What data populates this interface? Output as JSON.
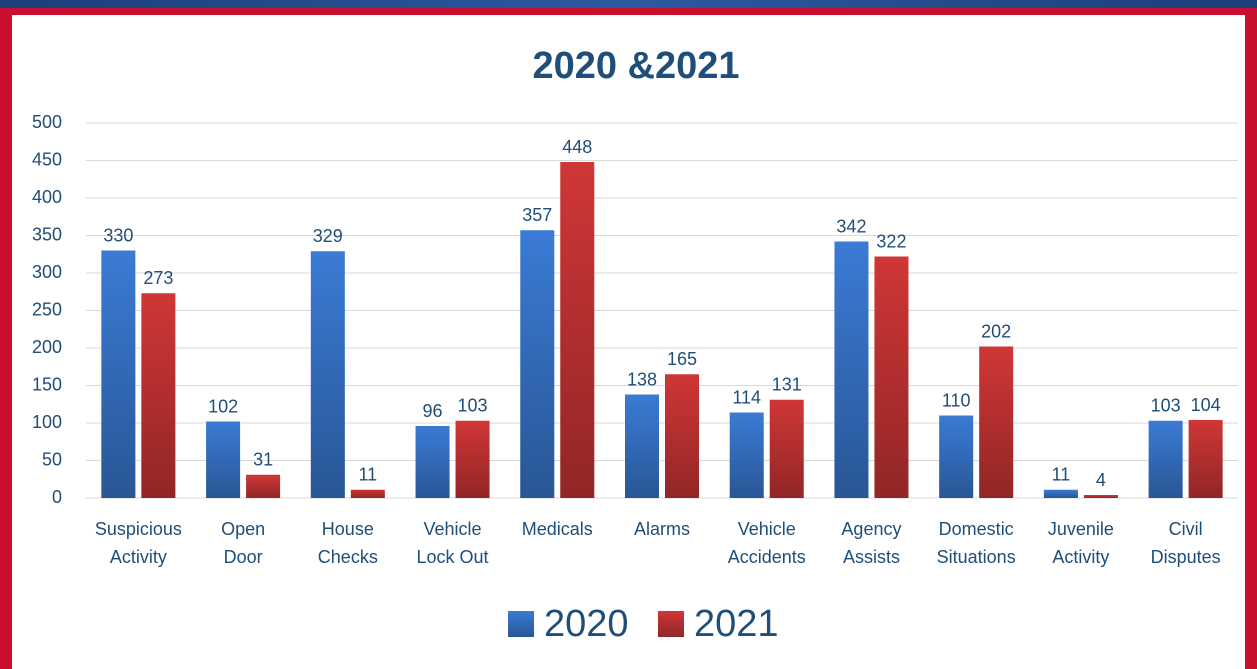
{
  "chart_data": {
    "type": "bar",
    "title": "2020 &2021",
    "categories": [
      [
        "Suspicious",
        "Activity"
      ],
      [
        "Open",
        "Door"
      ],
      [
        "House",
        "Checks"
      ],
      [
        "Vehicle",
        "Lock Out"
      ],
      [
        "Medicals"
      ],
      [
        "Alarms"
      ],
      [
        "Vehicle",
        "Accidents"
      ],
      [
        "Agency",
        "Assists"
      ],
      [
        "Domestic",
        "Situations"
      ],
      [
        "Juvenile",
        "Activity"
      ],
      [
        "Civil",
        "Disputes"
      ]
    ],
    "series": [
      {
        "name": "2020",
        "color": "#3a7bd5",
        "values": [
          330,
          102,
          329,
          96,
          357,
          138,
          114,
          342,
          110,
          11,
          103
        ]
      },
      {
        "name": "2021",
        "color": "#d03636",
        "values": [
          273,
          31,
          11,
          103,
          448,
          165,
          131,
          322,
          202,
          4,
          104
        ]
      }
    ],
    "ylim": [
      0,
      500
    ],
    "yticks": [
      0,
      50,
      100,
      150,
      200,
      250,
      300,
      350,
      400,
      450,
      500
    ],
    "grid": true,
    "legend": "bottom"
  }
}
